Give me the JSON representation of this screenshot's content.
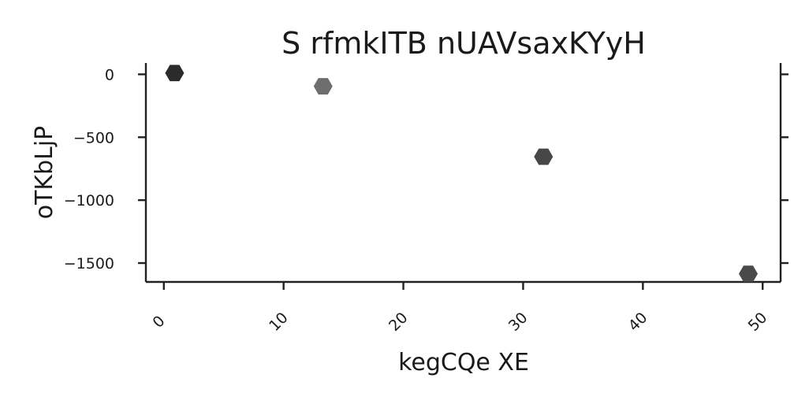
{
  "chart_data": {
    "type": "scatter",
    "title": "S rfmkITB nUAVsaxKYyH",
    "xlabel": "kegCQe XE",
    "ylabel": "oTKbLjP",
    "xlim": [
      -1.5,
      51.5
    ],
    "ylim": [
      -1650,
      90
    ],
    "xticks": [
      0,
      10,
      20,
      30,
      40,
      50
    ],
    "xtick_labels": [
      "0",
      "10",
      "20",
      "30",
      "40",
      "50"
    ],
    "yticks": [
      0,
      -500,
      -1000,
      -1500
    ],
    "ytick_labels": [
      "0",
      "−500",
      "−1000",
      "−1500"
    ],
    "marker": "hexagon",
    "grid": false,
    "points": [
      {
        "x": 0.9,
        "y": 10,
        "color": "#2b2b2b"
      },
      {
        "x": 13.3,
        "y": -95,
        "color": "#6e6e6e"
      },
      {
        "x": 31.7,
        "y": -655,
        "color": "#474747"
      },
      {
        "x": 48.8,
        "y": -1585,
        "color": "#4a4a4a"
      }
    ]
  }
}
